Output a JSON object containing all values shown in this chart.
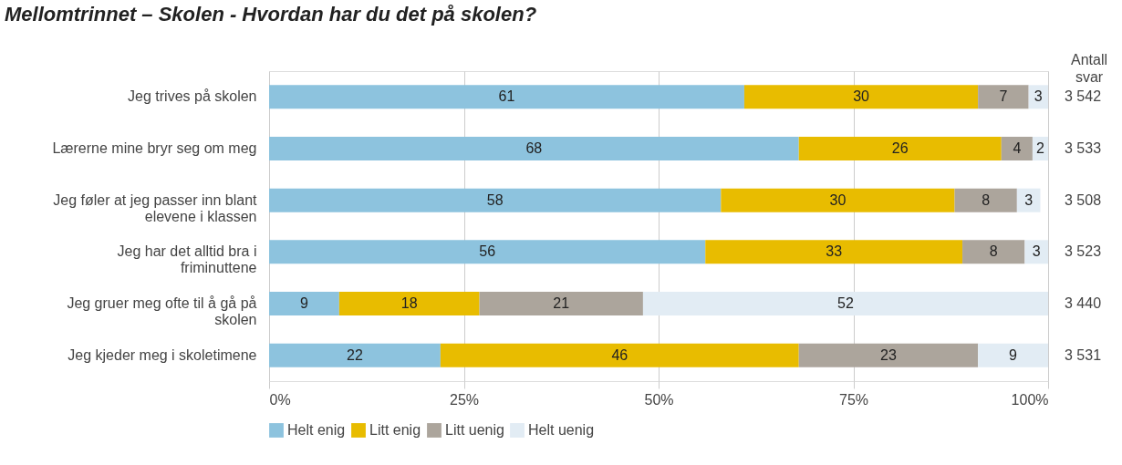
{
  "chart_data": {
    "type": "bar",
    "orientation": "horizontal",
    "stacked": true,
    "title": "Mellomtrinnet – Skolen - Hvordan har du det på skolen?",
    "categories": [
      "Jeg trives på skolen",
      "Lærerne mine bryr seg om meg",
      "Jeg føler at jeg passer inn blant elevene i klassen",
      "Jeg har det alltid bra i friminuttene",
      "Jeg gruer meg ofte til å gå på skolen",
      "Jeg kjeder meg i skoletimene"
    ],
    "series": [
      {
        "name": "Helt enig",
        "color": "#8dc3de",
        "values": [
          61,
          68,
          58,
          56,
          9,
          22
        ],
        "value_labels": [
          "61",
          "68",
          "58",
          "56",
          "9",
          "22"
        ]
      },
      {
        "name": "Litt enig",
        "color": "#e8bc00",
        "values": [
          30,
          26,
          30,
          33,
          18,
          46
        ],
        "value_labels": [
          "30",
          "26",
          "30",
          "33",
          "18",
          "46"
        ]
      },
      {
        "name": "Litt uenig",
        "color": "#aca59c",
        "values": [
          6.5,
          4,
          8,
          8,
          21,
          23
        ],
        "value_labels": [
          "7",
          "4",
          "8",
          "8",
          "21",
          "23"
        ]
      },
      {
        "name": "Helt uenig",
        "color": "#e2ecf4",
        "values": [
          2.5,
          2,
          3,
          3,
          52,
          9
        ],
        "value_labels": [
          "3",
          "2",
          "3",
          "3",
          "52",
          "9"
        ]
      }
    ],
    "xlim": [
      0,
      100
    ],
    "xticks": [
      {
        "value": 0,
        "label": "0%"
      },
      {
        "value": 25,
        "label": "25%"
      },
      {
        "value": 50,
        "label": "50%"
      },
      {
        "value": 75,
        "label": "75%"
      },
      {
        "value": 100,
        "label": "100%"
      }
    ],
    "grid": "x",
    "legend": "bottom",
    "annotations": [
      "Antall svar",
      "3 542",
      "3 533",
      "3 508",
      "3 523",
      "3 440",
      "3 531"
    ]
  }
}
